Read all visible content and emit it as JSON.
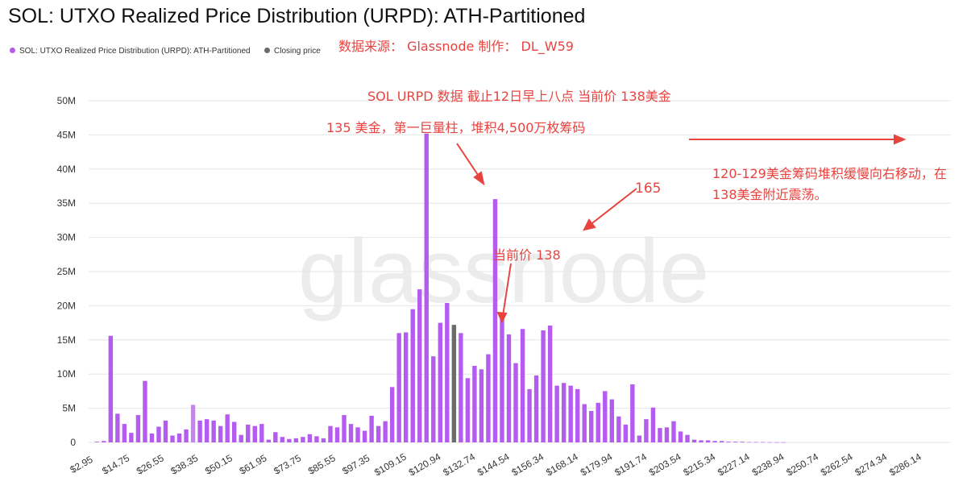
{
  "chart_data": {
    "type": "bar",
    "title": "SOL: UTXO Realized Price Distribution (URPD): ATH-Partitioned",
    "watermark": "glassnode",
    "legend": [
      {
        "label": "SOL: UTXO Realized Price Distribution (URPD): ATH-Partitioned",
        "color": "#b45cf0"
      },
      {
        "label": "Closing price",
        "color": "#6b6b6b"
      }
    ],
    "bar_color": "#b45cf0",
    "highlight_color": "#c684f3",
    "closing_color": "#6b6b6b",
    "closing_index": 52,
    "highlight_index": 14,
    "ylim": [
      0,
      50
    ],
    "y_unit": "M",
    "yticks": [
      "0",
      "5M",
      "10M",
      "15M",
      "20M",
      "25M",
      "30M",
      "35M",
      "40M",
      "45M",
      "50M"
    ],
    "xticks": [
      "$2.95",
      "$14.75",
      "$26.55",
      "$38.35",
      "$50.15",
      "$61.95",
      "$73.75",
      "$85.55",
      "$97.35",
      "$109.15",
      "$120.94",
      "$132.74",
      "$144.54",
      "$156.34",
      "$168.14",
      "$179.94",
      "$191.74",
      "$203.54",
      "$215.34",
      "$227.14",
      "$238.94",
      "$250.74",
      "$262.54",
      "$274.34",
      "$286.14"
    ],
    "values": [
      0.1,
      0.2,
      15.6,
      4.2,
      2.7,
      1.4,
      4.0,
      9.0,
      1.3,
      2.3,
      3.2,
      1.0,
      1.3,
      1.9,
      5.5,
      3.2,
      3.4,
      3.2,
      2.4,
      4.1,
      3.0,
      1.1,
      2.6,
      2.4,
      2.7,
      0.4,
      1.5,
      0.8,
      0.5,
      0.6,
      0.8,
      1.2,
      0.9,
      0.6,
      2.4,
      2.2,
      4.0,
      2.7,
      2.2,
      1.7,
      3.9,
      2.4,
      3.1,
      8.1,
      16.0,
      16.1,
      19.5,
      22.4,
      45.2,
      12.6,
      17.5,
      20.4,
      17.2,
      16.0,
      9.4,
      11.2,
      10.7,
      12.9,
      35.6,
      18.8,
      15.8,
      11.6,
      16.6,
      7.8,
      9.8,
      16.4,
      17.1,
      8.3,
      8.7,
      8.3,
      7.8,
      5.6,
      4.6,
      5.8,
      7.5,
      6.3,
      3.8,
      2.6,
      8.5,
      1.0,
      3.4,
      5.1,
      2.1,
      2.2,
      3.1,
      1.6,
      1.1,
      0.4,
      0.3,
      0.3,
      0.2,
      0.2,
      0.1,
      0.1,
      0.1,
      0.05,
      0.05,
      0.05,
      0.03,
      0.02,
      0.02
    ]
  },
  "annotations": {
    "source": "数据来源： Glassnode  制作： DL_W59",
    "note1": "SOL URPD  数据 截止12日早上八点 当前价 138美金",
    "note2": "135 美金，第一巨量柱，堆积4,500万枚筹码",
    "note3": "当前价 138",
    "note4": "165",
    "note5": "120-129美金筹码堆积缓慢向右移动，在138美金附近震荡。"
  }
}
